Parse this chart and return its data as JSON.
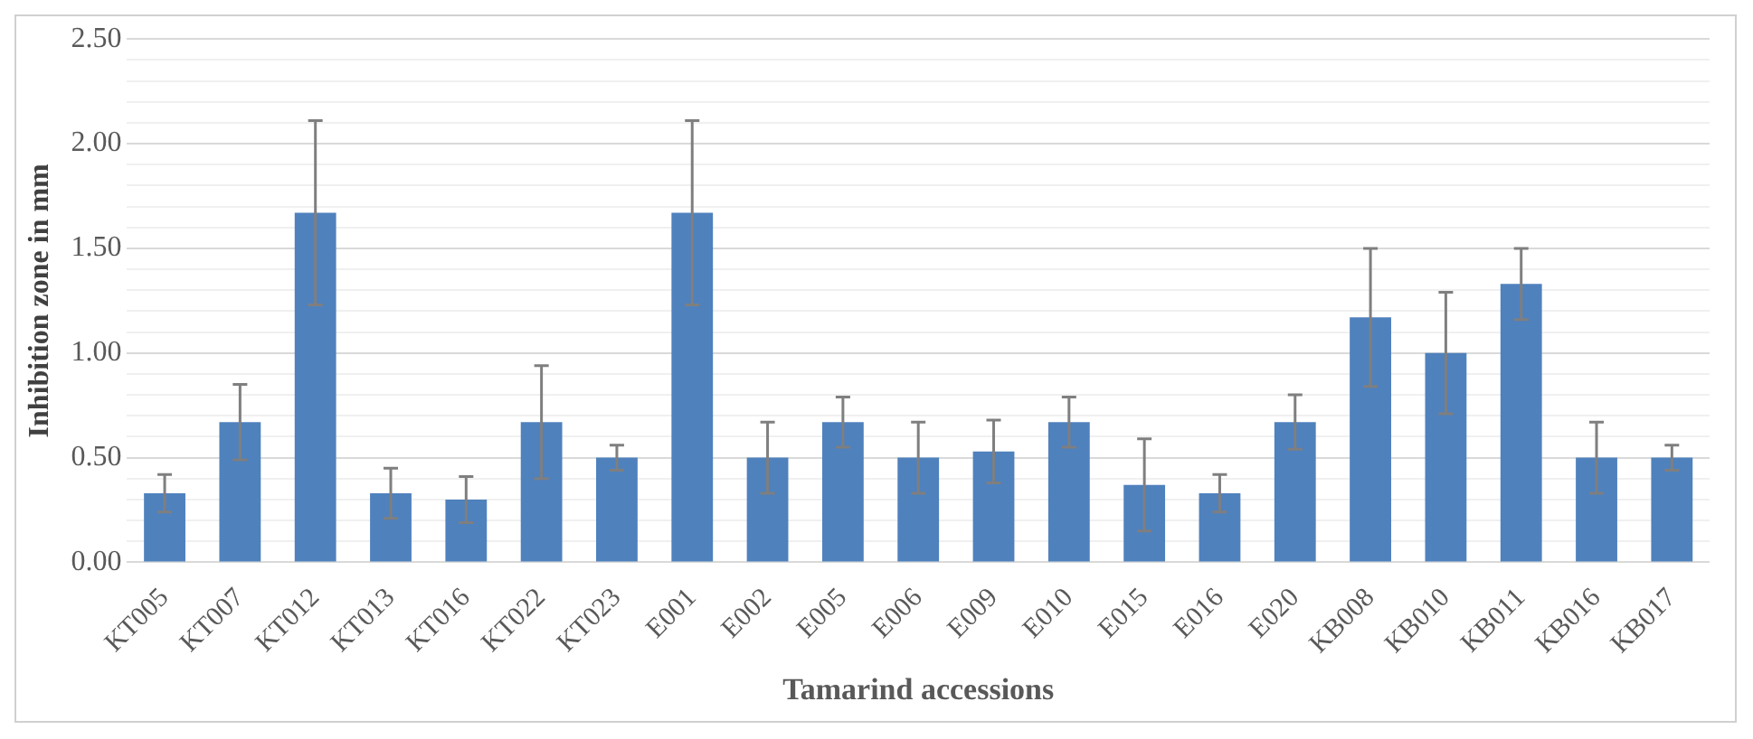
{
  "chart_data": {
    "type": "bar",
    "xlabel": "Tamarind accessions",
    "ylabel": "Inhibition zone in mm",
    "categories": [
      "KT005",
      "KT007",
      "KT012",
      "KT013",
      "KT016",
      "KT022",
      "KT023",
      "E001",
      "E002",
      "E005",
      "E006",
      "E009",
      "E010",
      "E015",
      "E016",
      "E020",
      "KB008",
      "KB010",
      "KB011",
      "KB016",
      "KB017"
    ],
    "values": [
      0.33,
      0.67,
      1.67,
      0.33,
      0.3,
      0.67,
      0.5,
      1.67,
      0.5,
      0.67,
      0.5,
      0.53,
      0.67,
      0.37,
      0.33,
      0.67,
      1.17,
      1.0,
      1.33,
      0.5,
      0.5
    ],
    "errors": [
      0.09,
      0.18,
      0.44,
      0.12,
      0.11,
      0.27,
      0.06,
      0.44,
      0.17,
      0.12,
      0.17,
      0.15,
      0.12,
      0.22,
      0.09,
      0.13,
      0.33,
      0.29,
      0.17,
      0.17,
      0.06
    ],
    "color": "#4f81bd",
    "ylim": [
      0,
      2.5
    ],
    "yticks": [
      {
        "value": 0,
        "label": "0.00"
      },
      {
        "value": 0.1,
        "label": null
      },
      {
        "value": 0.2,
        "label": null
      },
      {
        "value": 0.3,
        "label": null
      },
      {
        "value": 0.4,
        "label": null
      },
      {
        "value": 0.5,
        "label": "0.50"
      },
      {
        "value": 0.6,
        "label": null
      },
      {
        "value": 0.7,
        "label": null
      },
      {
        "value": 0.8,
        "label": null
      },
      {
        "value": 0.9,
        "label": null
      },
      {
        "value": 1.0,
        "label": "1.00"
      },
      {
        "value": 1.1,
        "label": null
      },
      {
        "value": 1.2,
        "label": null
      },
      {
        "value": 1.3,
        "label": null
      },
      {
        "value": 1.4,
        "label": null
      },
      {
        "value": 1.5,
        "label": "1.50"
      },
      {
        "value": 1.6,
        "label": null
      },
      {
        "value": 1.7,
        "label": null
      },
      {
        "value": 1.8,
        "label": null
      },
      {
        "value": 1.9,
        "label": null
      },
      {
        "value": 2.0,
        "label": "2.00"
      },
      {
        "value": 2.1,
        "label": null
      },
      {
        "value": 2.2,
        "label": null
      },
      {
        "value": 2.3,
        "label": null
      },
      {
        "value": 2.4,
        "label": null
      },
      {
        "value": 2.5,
        "label": "2.50"
      }
    ],
    "grid": "y",
    "legend": false
  }
}
